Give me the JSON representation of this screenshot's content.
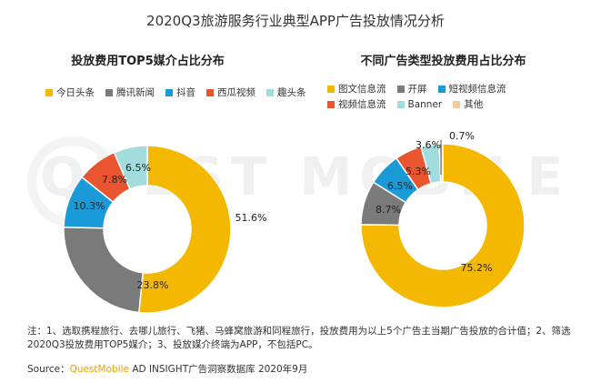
{
  "title": "2020Q3旅游服务行业典型APP广告投放情况分析",
  "watermark": "QUEST MOBILE",
  "note": "注：1、选取携程旅行、去哪儿旅行、飞猪、马蜂窝旅游和同程旅行，投放费用为以上5个广告主当期广告投放的合计值；2、筛选2020Q3投放费用TOP5媒介；3、投放媒介终端为APP，不包括PC。",
  "source": {
    "prefix": "Source：",
    "brand": "QuestMobile",
    "rest": " AD INSIGHT广告洞察数据库 2020年9月"
  },
  "chart_data": [
    {
      "type": "pie",
      "donut": true,
      "title": "投放费用TOP5媒介占比分布",
      "labels": [
        "今日头条",
        "腾讯新闻",
        "抖音",
        "西瓜视频",
        "趣头条"
      ],
      "values": [
        51.6,
        23.8,
        10.3,
        7.8,
        6.5
      ],
      "value_labels": [
        "51.6%",
        "23.8%",
        "10.3%",
        "7.8%",
        "6.5%"
      ],
      "colors": [
        "#f5b800",
        "#7a7a7a",
        "#1a9ad6",
        "#e8552f",
        "#a3dcdc"
      ],
      "legend_rows": [
        [
          0,
          1,
          2,
          3,
          4
        ]
      ]
    },
    {
      "type": "pie",
      "donut": true,
      "title": "不同广告类型投放费用占比分布",
      "labels": [
        "图文信息流",
        "开屏",
        "短视频信息流",
        "视频信息流",
        "Banner",
        "其他"
      ],
      "values": [
        75.2,
        8.7,
        6.5,
        5.3,
        3.6,
        0.7
      ],
      "value_labels": [
        "75.2%",
        "8.7%",
        "6.5%",
        "5.3%",
        "3.6%",
        "0.7%"
      ],
      "colors": [
        "#f5b800",
        "#7a7a7a",
        "#1a9ad6",
        "#e8552f",
        "#a3dcdc",
        "#f6c89a"
      ],
      "legend_rows": [
        [
          0,
          1,
          2
        ],
        [
          3,
          4,
          5
        ]
      ]
    }
  ]
}
